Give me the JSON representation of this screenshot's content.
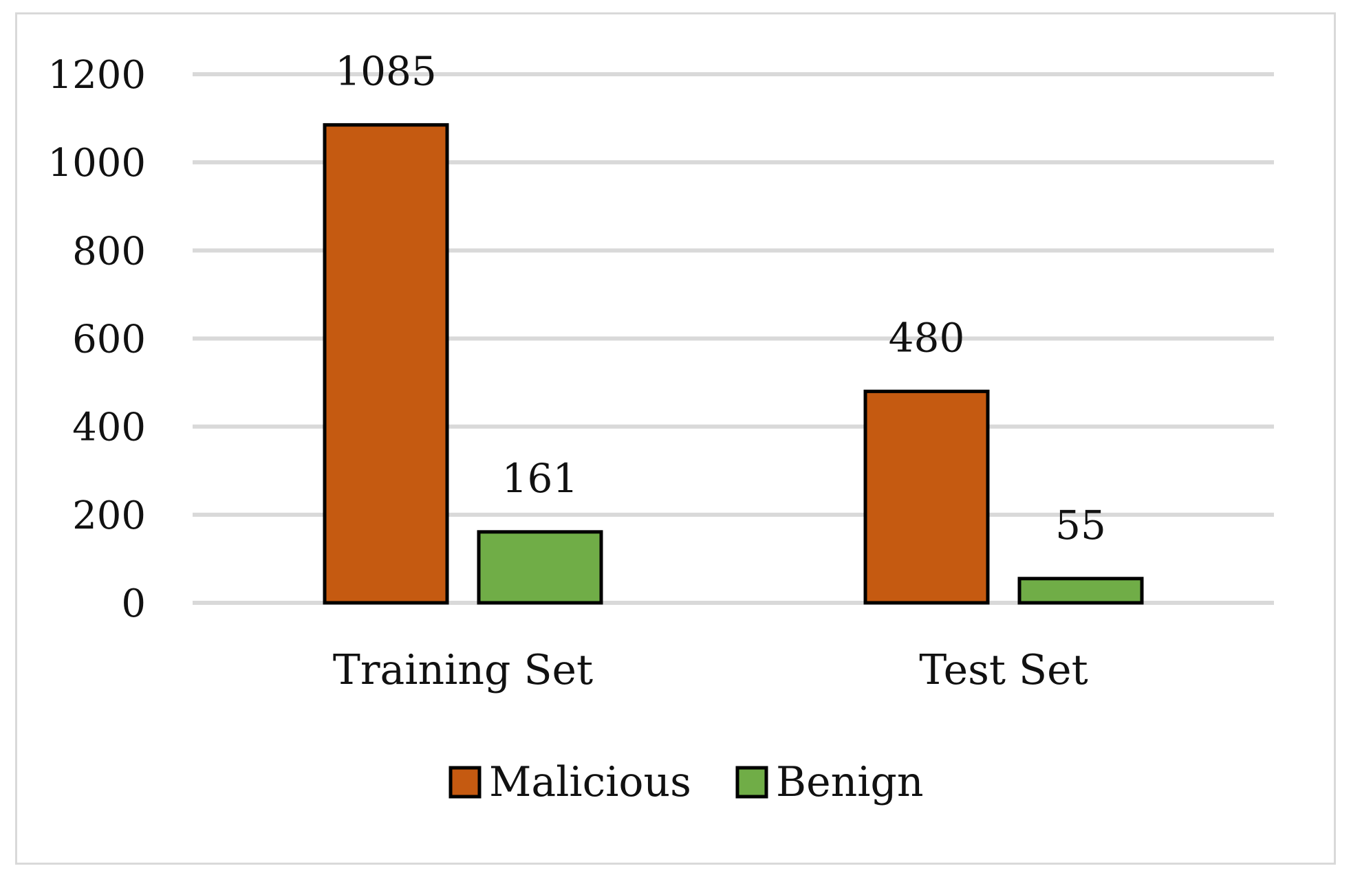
{
  "chart_data": {
    "type": "bar",
    "categories": [
      "Training Set",
      "Test Set"
    ],
    "series": [
      {
        "name": "Malicious",
        "values": [
          1085,
          480
        ],
        "color": "#C55A11"
      },
      {
        "name": "Benign",
        "values": [
          161,
          55
        ],
        "color": "#70AD47"
      }
    ],
    "ylim": [
      0,
      1200
    ],
    "yticks": [
      0,
      200,
      400,
      600,
      800,
      1000,
      1200
    ],
    "grid": true,
    "legend": "bottom",
    "data_labels": true,
    "title": "",
    "xlabel": "",
    "ylabel": ""
  }
}
